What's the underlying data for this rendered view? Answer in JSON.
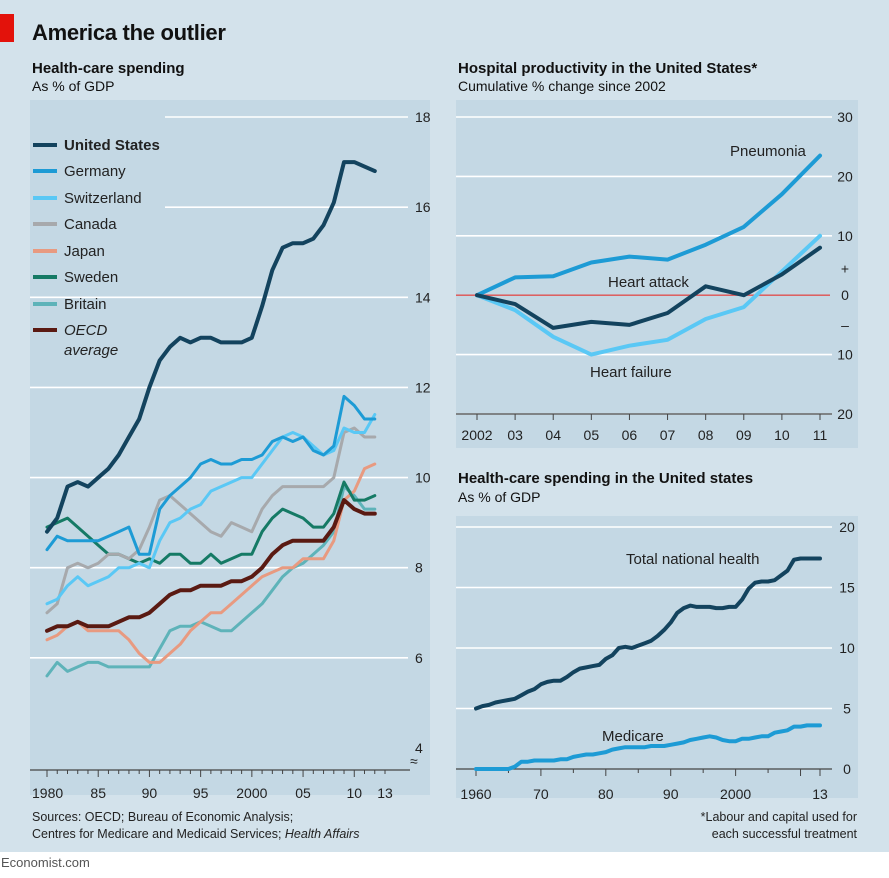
{
  "title": "America the outlier",
  "sources": {
    "left_line1": "Sources: OECD; Bureau of Economic Analysis;",
    "left_line2": "Centres for Medicare and Medicaid Services;",
    "left_line2_italic": "Health Affairs",
    "right_line1": "*Labour and capital used for",
    "right_line2": "each successful treatment"
  },
  "footer": "Economist.com",
  "colors": {
    "background": "#d3e2eb",
    "panel": "#c4d8e4",
    "united_states": "#13435e",
    "germany": "#1d9bd5",
    "switzerland": "#5ac8f5",
    "canada": "#a7a9ac",
    "japan": "#e89a80",
    "sweden": "#157a65",
    "britain": "#5eb3b9",
    "oecd": "#5a1a12",
    "zero_line": "#e05050",
    "gridline": "#ffffff"
  },
  "chart_data": [
    {
      "id": "spending",
      "type": "line",
      "title": "Health-care spending",
      "subtitle": "As % of GDP",
      "ylim": [
        4,
        18
      ],
      "yticks": [
        "4",
        "6",
        "8",
        "10",
        "12",
        "14",
        "16",
        "18"
      ],
      "xticks": [
        "1980",
        "85",
        "90",
        "95",
        "2000",
        "05",
        "10",
        "13"
      ],
      "xtick_values": [
        1980,
        1985,
        1990,
        1995,
        2000,
        2005,
        2010,
        2013
      ],
      "xlim": [
        1980,
        2013
      ],
      "legend_position": "top-left",
      "grid": true,
      "x": [
        1980,
        1981,
        1982,
        1983,
        1984,
        1985,
        1986,
        1987,
        1988,
        1989,
        1990,
        1991,
        1992,
        1993,
        1994,
        1995,
        1996,
        1997,
        1998,
        1999,
        2000,
        2001,
        2002,
        2003,
        2004,
        2005,
        2006,
        2007,
        2008,
        2009,
        2010,
        2011,
        2012
      ],
      "series": [
        {
          "name": "United States",
          "key": "united_states",
          "bold": true,
          "width": 4,
          "values": [
            8.8,
            9.1,
            9.8,
            9.9,
            9.8,
            10.0,
            10.2,
            10.5,
            10.9,
            11.3,
            12.0,
            12.6,
            12.9,
            13.1,
            13.0,
            13.1,
            13.1,
            13.0,
            13.0,
            13.0,
            13.1,
            13.8,
            14.6,
            15.1,
            15.2,
            15.2,
            15.3,
            15.6,
            16.1,
            17.0,
            17.0,
            16.9,
            16.8
          ]
        },
        {
          "name": "Germany",
          "key": "germany",
          "width": 3,
          "values": [
            8.4,
            8.7,
            8.6,
            8.6,
            8.6,
            8.6,
            8.7,
            8.8,
            8.9,
            8.3,
            8.3,
            9.3,
            9.6,
            9.8,
            10.0,
            10.3,
            10.4,
            10.3,
            10.3,
            10.4,
            10.4,
            10.5,
            10.8,
            10.9,
            10.8,
            10.9,
            10.6,
            10.5,
            10.7,
            11.8,
            11.6,
            11.3,
            11.3
          ]
        },
        {
          "name": "Switzerland",
          "key": "switzerland",
          "width": 3,
          "values": [
            7.2,
            7.3,
            7.6,
            7.8,
            7.6,
            7.7,
            7.8,
            8.0,
            8.0,
            8.1,
            8.0,
            8.6,
            9.0,
            9.1,
            9.3,
            9.4,
            9.7,
            9.8,
            9.9,
            10.0,
            10.0,
            10.3,
            10.6,
            10.9,
            11.0,
            10.9,
            10.7,
            10.5,
            10.6,
            11.1,
            11.0,
            11.0,
            11.4
          ]
        },
        {
          "name": "Canada",
          "key": "canada",
          "width": 3,
          "values": [
            7.0,
            7.2,
            8.0,
            8.1,
            8.0,
            8.1,
            8.3,
            8.3,
            8.2,
            8.4,
            8.9,
            9.5,
            9.6,
            9.4,
            9.2,
            9.0,
            8.8,
            8.7,
            9.0,
            8.9,
            8.8,
            9.3,
            9.6,
            9.8,
            9.8,
            9.8,
            9.8,
            9.8,
            10.0,
            11.0,
            11.1,
            10.9,
            10.9
          ]
        },
        {
          "name": "Japan",
          "key": "japan",
          "width": 3,
          "values": [
            6.4,
            6.5,
            6.7,
            6.8,
            6.6,
            6.6,
            6.6,
            6.6,
            6.4,
            6.1,
            5.9,
            5.9,
            6.1,
            6.3,
            6.6,
            6.8,
            7.0,
            7.0,
            7.2,
            7.4,
            7.6,
            7.8,
            7.9,
            8.0,
            8.0,
            8.2,
            8.2,
            8.2,
            8.6,
            9.5,
            9.7,
            10.2,
            10.3
          ]
        },
        {
          "name": "Sweden",
          "key": "sweden",
          "width": 3,
          "values": [
            8.9,
            9.0,
            9.1,
            8.9,
            8.7,
            8.5,
            8.3,
            8.3,
            8.2,
            8.1,
            8.2,
            8.1,
            8.3,
            8.3,
            8.1,
            8.1,
            8.3,
            8.1,
            8.2,
            8.3,
            8.3,
            8.8,
            9.1,
            9.3,
            9.2,
            9.1,
            8.9,
            8.9,
            9.2,
            9.9,
            9.5,
            9.5,
            9.6
          ]
        },
        {
          "name": "Britain",
          "key": "britain",
          "width": 3,
          "values": [
            5.6,
            5.9,
            5.7,
            5.8,
            5.9,
            5.9,
            5.8,
            5.8,
            5.8,
            5.8,
            5.8,
            6.2,
            6.6,
            6.7,
            6.7,
            6.8,
            6.7,
            6.6,
            6.6,
            6.8,
            7.0,
            7.2,
            7.5,
            7.8,
            8.0,
            8.1,
            8.3,
            8.5,
            8.8,
            9.8,
            9.6,
            9.3,
            9.3
          ]
        },
        {
          "name": "OECD average",
          "key": "oecd",
          "italic": true,
          "width": 4,
          "values": [
            6.6,
            6.7,
            6.7,
            6.8,
            6.7,
            6.7,
            6.7,
            6.8,
            6.9,
            6.9,
            7.0,
            7.2,
            7.4,
            7.5,
            7.5,
            7.6,
            7.6,
            7.6,
            7.7,
            7.7,
            7.8,
            8.0,
            8.3,
            8.5,
            8.6,
            8.6,
            8.6,
            8.6,
            8.9,
            9.5,
            9.3,
            9.2,
            9.2
          ]
        }
      ],
      "legend": [
        "United States",
        "Germany",
        "Switzerland",
        "Canada",
        "Japan",
        "Sweden",
        "Britain",
        "OECD average"
      ],
      "legend_lines": [
        [
          "United States"
        ],
        [
          "Germany"
        ],
        [
          "Switzerland"
        ],
        [
          "Canada"
        ],
        [
          "Japan"
        ],
        [
          "Sweden"
        ],
        [
          "Britain"
        ],
        [
          "OECD",
          "average"
        ]
      ]
    },
    {
      "id": "productivity",
      "type": "line",
      "title": "Hospital productivity in the United States*",
      "subtitle": "Cumulative % change since 2002",
      "ylim": [
        -20,
        30
      ],
      "ytick_values": [
        -20,
        -10,
        0,
        10,
        20,
        30
      ],
      "yticks": [
        "20",
        "10",
        "0",
        "10",
        "20",
        "30"
      ],
      "sign_labels": [
        "+",
        "–"
      ],
      "xticks": [
        "2002",
        "03",
        "04",
        "05",
        "06",
        "07",
        "08",
        "09",
        "10",
        "11"
      ],
      "x": [
        2002,
        2003,
        2004,
        2005,
        2006,
        2007,
        2008,
        2009,
        2010,
        2011
      ],
      "grid": true,
      "series": [
        {
          "name": "Pneumonia",
          "key": "germany",
          "values": [
            0,
            3,
            3.2,
            5.5,
            6.5,
            6,
            8.5,
            11.5,
            17,
            23.5
          ]
        },
        {
          "name": "Heart attack",
          "key": "united_states",
          "values": [
            0,
            -1.5,
            -5.5,
            -4.5,
            -5,
            -3,
            1.5,
            0,
            3.5,
            8
          ]
        },
        {
          "name": "Heart failure",
          "key": "switzerland",
          "values": [
            0,
            -2.5,
            -7,
            -10,
            -8.5,
            -7.5,
            -4,
            -2,
            4,
            10
          ]
        }
      ],
      "annotations": [
        "Pneumonia",
        "Heart attack",
        "Heart failure"
      ]
    },
    {
      "id": "us_spending",
      "type": "line",
      "title": "Health-care spending in the United states",
      "subtitle": "As % of GDP",
      "ylim": [
        0,
        20
      ],
      "yticks": [
        "0",
        "5",
        "10",
        "15",
        "20"
      ],
      "xticks": [
        "1960",
        "70",
        "80",
        "90",
        "2000",
        "13"
      ],
      "xtick_values": [
        1960,
        1970,
        1980,
        1990,
        2000,
        2013
      ],
      "xlim": [
        1960,
        2013
      ],
      "grid": true,
      "x": [
        1960,
        1961,
        1962,
        1963,
        1964,
        1965,
        1966,
        1967,
        1968,
        1969,
        1970,
        1971,
        1972,
        1973,
        1974,
        1975,
        1976,
        1977,
        1978,
        1979,
        1980,
        1981,
        1982,
        1983,
        1984,
        1985,
        1986,
        1987,
        1988,
        1989,
        1990,
        1991,
        1992,
        1993,
        1994,
        1995,
        1996,
        1997,
        1998,
        1999,
        2000,
        2001,
        2002,
        2003,
        2004,
        2005,
        2006,
        2007,
        2008,
        2009,
        2010,
        2011,
        2012,
        2013
      ],
      "series": [
        {
          "name": "Total national health",
          "key": "united_states",
          "values": [
            5.0,
            5.2,
            5.3,
            5.5,
            5.6,
            5.7,
            5.8,
            6.1,
            6.4,
            6.6,
            7.0,
            7.2,
            7.3,
            7.3,
            7.6,
            8.0,
            8.3,
            8.4,
            8.5,
            8.6,
            9.1,
            9.4,
            10.0,
            10.1,
            10.0,
            10.2,
            10.4,
            10.6,
            11.0,
            11.5,
            12.1,
            12.9,
            13.3,
            13.5,
            13.4,
            13.4,
            13.4,
            13.3,
            13.3,
            13.4,
            13.4,
            14.0,
            14.9,
            15.4,
            15.5,
            15.5,
            15.6,
            16.0,
            16.4,
            17.3,
            17.4,
            17.4,
            17.4,
            17.4
          ]
        },
        {
          "name": "Medicare",
          "key": "germany",
          "values": [
            0,
            0,
            0,
            0,
            0,
            0,
            0.2,
            0.6,
            0.6,
            0.7,
            0.7,
            0.7,
            0.7,
            0.8,
            0.8,
            1.0,
            1.1,
            1.2,
            1.2,
            1.3,
            1.4,
            1.6,
            1.7,
            1.8,
            1.8,
            1.8,
            1.8,
            1.9,
            1.9,
            1.9,
            2.0,
            2.1,
            2.2,
            2.4,
            2.5,
            2.6,
            2.7,
            2.6,
            2.4,
            2.3,
            2.3,
            2.5,
            2.5,
            2.6,
            2.7,
            2.7,
            3.0,
            3.1,
            3.2,
            3.5,
            3.5,
            3.6,
            3.6,
            3.6
          ]
        }
      ],
      "annotations": [
        "Total national health",
        "Medicare"
      ]
    }
  ]
}
